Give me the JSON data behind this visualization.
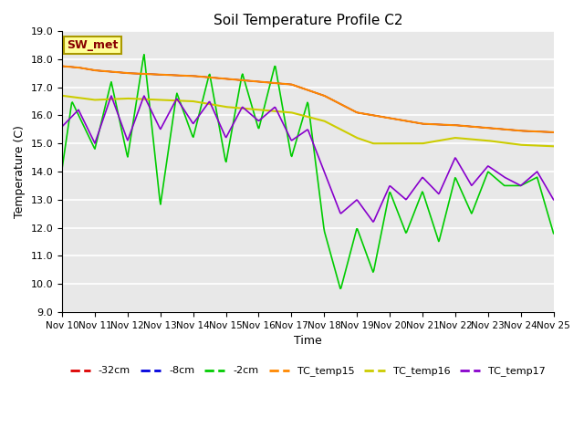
{
  "title": "Soil Temperature Profile C2",
  "xlabel": "Time",
  "ylabel": "Temperature (C)",
  "ylim": [
    9.0,
    19.0
  ],
  "yticks": [
    9.0,
    10.0,
    11.0,
    12.0,
    13.0,
    14.0,
    15.0,
    16.0,
    17.0,
    18.0,
    19.0
  ],
  "x_tick_labels": [
    "Nov 10",
    "Nov 11",
    "Nov 12",
    "Nov 13",
    "Nov 14",
    "Nov 15",
    "Nov 16",
    "Nov 17",
    "Nov 18",
    "Nov 19",
    "Nov 20",
    "Nov 21",
    "Nov 22",
    "Nov 23",
    "Nov 24",
    "Nov 25"
  ],
  "background_color": "#e8e8e8",
  "plot_bg": "#e8e8e8",
  "legend_label": "SW_met",
  "legend_bg": "#ffff99",
  "legend_border": "#aa9900",
  "legend_text_color": "#880000",
  "series": {
    "neg32cm": {
      "color": "#dd0000",
      "label": "-32cm"
    },
    "neg8cm": {
      "color": "#0000dd",
      "label": "-8cm"
    },
    "neg2cm": {
      "color": "#00cc00",
      "label": "-2cm"
    },
    "TC_temp15": {
      "color": "#ff8800",
      "label": "TC_temp15"
    },
    "TC_temp16": {
      "color": "#cccc00",
      "label": "TC_temp16"
    },
    "TC_temp17": {
      "color": "#8800cc",
      "label": "TC_temp17"
    }
  },
  "num_days": 15,
  "points_per_day": 48,
  "figsize": [
    6.4,
    4.8
  ],
  "dpi": 100
}
